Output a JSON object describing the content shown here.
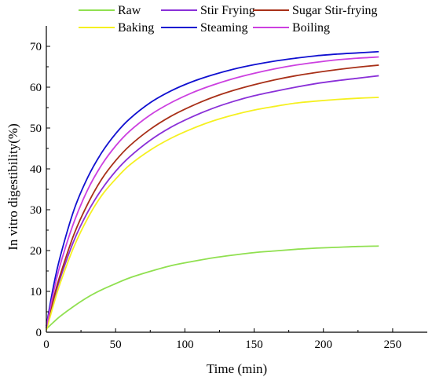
{
  "chart_data": {
    "type": "line",
    "xlabel": "Time (min)",
    "ylabel": "In vitro digestibility(%)",
    "xlim": [
      0,
      275
    ],
    "ylim": [
      0,
      75
    ],
    "xticks": [
      0,
      50,
      100,
      150,
      200,
      250
    ],
    "yticks": [
      0,
      10,
      20,
      30,
      40,
      50,
      60,
      70
    ],
    "x": [
      0,
      5,
      10,
      20,
      30,
      40,
      50,
      60,
      75,
      90,
      105,
      120,
      135,
      150,
      165,
      180,
      195,
      210,
      225,
      240
    ],
    "legend_position": "top",
    "grid": false,
    "series": [
      {
        "name": "Raw",
        "color": "#90e050",
        "values": [
          0.8,
          2.4,
          3.9,
          6.4,
          8.6,
          10.4,
          11.9,
          13.3,
          14.9,
          16.3,
          17.3,
          18.2,
          18.9,
          19.5,
          19.9,
          20.3,
          20.6,
          20.8,
          21.0,
          21.1
        ]
      },
      {
        "name": "Stir Frying",
        "color": "#8a30d8",
        "values": [
          1.0,
          7.5,
          13.2,
          22.5,
          29.5,
          35.0,
          39.4,
          42.9,
          47.0,
          50.2,
          52.7,
          54.8,
          56.5,
          57.9,
          59.0,
          60.0,
          60.9,
          61.6,
          62.2,
          62.8
        ]
      },
      {
        "name": "Sugar Stir-frying",
        "color": "#a83018",
        "values": [
          1.0,
          8.0,
          14.0,
          24.0,
          31.5,
          37.5,
          42.0,
          45.6,
          49.7,
          52.9,
          55.4,
          57.5,
          59.2,
          60.6,
          61.8,
          62.8,
          63.6,
          64.3,
          64.9,
          65.4
        ]
      },
      {
        "name": "Baking",
        "color": "#f5f020",
        "values": [
          0.5,
          6.5,
          12.0,
          21.0,
          28.0,
          33.5,
          37.5,
          40.9,
          44.6,
          47.5,
          49.8,
          51.7,
          53.2,
          54.4,
          55.3,
          56.1,
          56.6,
          57.0,
          57.3,
          57.5
        ]
      },
      {
        "name": "Steaming",
        "color": "#1010d0",
        "values": [
          1.5,
          11.0,
          18.5,
          30.0,
          38.0,
          44.0,
          48.6,
          52.2,
          56.2,
          59.1,
          61.3,
          63.0,
          64.4,
          65.5,
          66.4,
          67.1,
          67.7,
          68.1,
          68.4,
          68.7
        ]
      },
      {
        "name": "Boiling",
        "color": "#cc40e0",
        "values": [
          1.2,
          9.5,
          16.5,
          27.0,
          35.0,
          41.0,
          45.6,
          49.2,
          53.2,
          56.2,
          58.6,
          60.5,
          62.1,
          63.4,
          64.5,
          65.4,
          66.1,
          66.7,
          67.1,
          67.4
        ]
      }
    ]
  }
}
